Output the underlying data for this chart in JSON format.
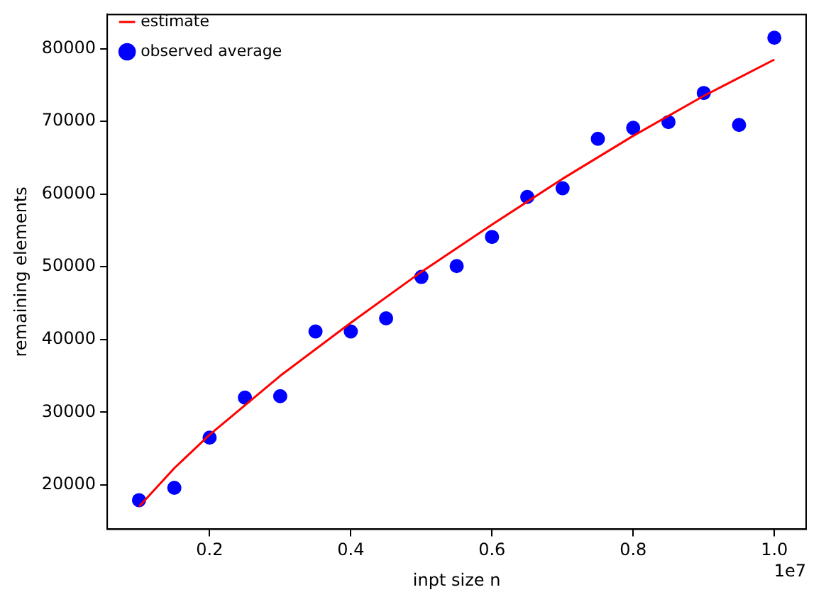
{
  "chart_data": {
    "type": "scatter",
    "xlabel": "inpt size n",
    "ylabel": "remaining elements",
    "legend": "top left",
    "grid": false,
    "xlim": [
      0.055,
      1.045
    ],
    "ylim": [
      13900,
      84700
    ],
    "xticks": [
      0.2,
      0.4,
      0.6,
      0.8,
      {
        "value": 1.0,
        "label": "1.0"
      }
    ],
    "yticks": [
      20000,
      30000,
      40000,
      50000,
      60000,
      70000,
      80000
    ],
    "annotations": [
      "1e7"
    ],
    "series": [
      {
        "name": "estimate",
        "type": "line",
        "color": "#ff0000",
        "marker": "none",
        "line_style": "solid",
        "x": [
          0.1,
          0.15,
          0.2,
          0.3,
          0.4,
          0.5,
          0.6,
          0.7,
          0.8,
          0.9,
          1.0
        ],
        "values": [
          17000,
          22300,
          26900,
          35000,
          42300,
          49300,
          55800,
          62100,
          68000,
          73500,
          78500
        ]
      },
      {
        "name": "observed average",
        "color": "#0000ff",
        "marker": "circle",
        "x": [
          0.1,
          0.15,
          0.2,
          0.25,
          0.3,
          0.35,
          0.4,
          0.45,
          0.5,
          0.55,
          0.6,
          0.65,
          0.7,
          0.75,
          0.8,
          0.85,
          0.9,
          0.95,
          1.0
        ],
        "values": [
          17900,
          19600,
          26500,
          32000,
          32200,
          41100,
          41100,
          42900,
          48600,
          50100,
          54100,
          59600,
          60800,
          67600,
          69100,
          69900,
          73900,
          69500,
          81500
        ]
      }
    ]
  }
}
